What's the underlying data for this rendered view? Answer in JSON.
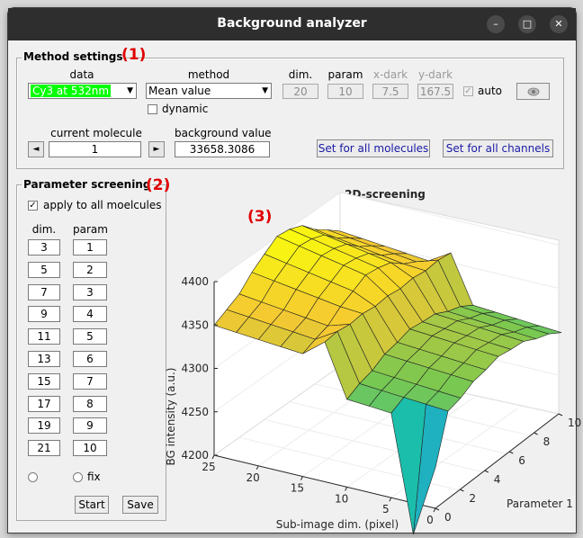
{
  "window": {
    "title": "Background analyzer",
    "controls": [
      "–",
      "□",
      "✕"
    ]
  },
  "method_settings": {
    "title": "Method settings",
    "annotation": "(1)",
    "data_label": "data",
    "data_value": "Cy3 at 532nm",
    "method_label": "method",
    "method_value": "Mean value",
    "dynamic_label": "dynamic",
    "dim_label": "dim.",
    "dim_value": "20",
    "param_label": "param",
    "param_value": "10",
    "xdark_label": "x-dark",
    "xdark_value": "7.5",
    "ydark_label": "y-dark",
    "ydark_value": "167.5",
    "auto_label": "auto",
    "current_molecule_label": "current molecule",
    "current_molecule_value": "1",
    "prev_glyph": "◄",
    "next_glyph": "►",
    "background_value_label": "background value",
    "background_value": "33658.3086",
    "set_all_molecules_label": "Set for all molecules",
    "set_all_channels_label": "Set for all channels"
  },
  "parameter_screening": {
    "title": "Parameter screening",
    "annotation": "(2)",
    "apply_label": "apply to all moelcules",
    "dim_header": "dim.",
    "param_header": "param",
    "dims": [
      "3",
      "5",
      "7",
      "9",
      "11",
      "13",
      "15",
      "17",
      "19",
      "21"
    ],
    "params": [
      "1",
      "2",
      "3",
      "4",
      "5",
      "6",
      "7",
      "8",
      "9",
      "10"
    ],
    "fix_label": "fix",
    "start_label": "Start",
    "save_label": "Save"
  },
  "plot": {
    "annotation": "(3)",
    "title": "2D-screening",
    "zlabel": "BG intensity (a.u.)",
    "xlabel": "Sub-image dim. (pixel)",
    "ylabel": "Parameter 1",
    "z_ticks": [
      "4200",
      "4250",
      "4300",
      "4350",
      "4400"
    ],
    "x_ticks": [
      "0",
      "5",
      "10",
      "15",
      "20",
      "25"
    ],
    "y_ticks": [
      "0",
      "2",
      "4",
      "6",
      "8",
      "10"
    ]
  }
}
